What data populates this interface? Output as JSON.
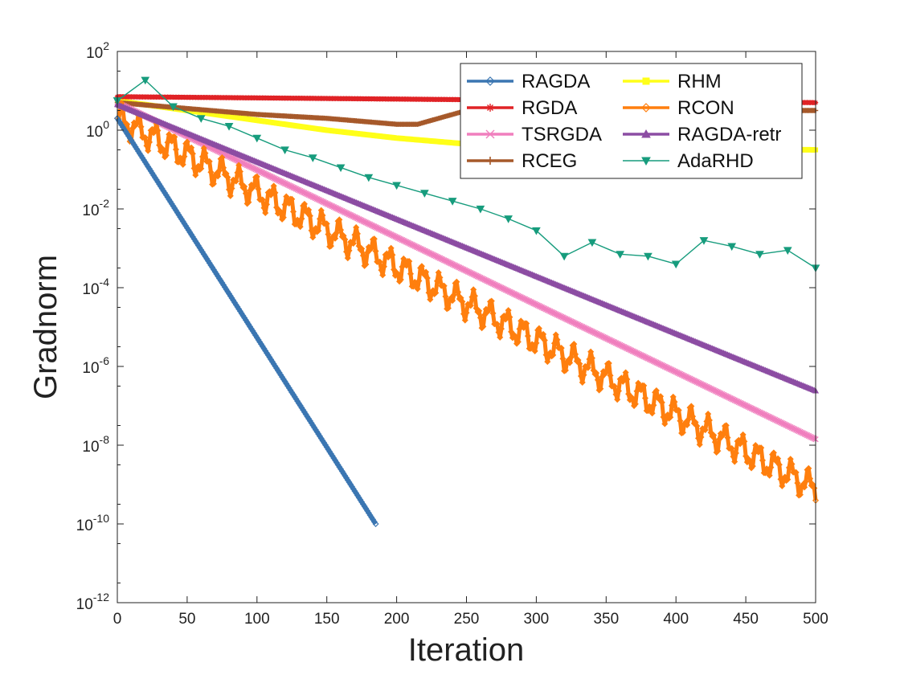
{
  "chart_data": {
    "type": "line",
    "title": "",
    "xlabel": "Iteration",
    "ylabel": "Gradnorm",
    "yscale": "log",
    "xlim": [
      0,
      500
    ],
    "ylim_exp": [
      -12,
      2
    ],
    "xticks": [
      "0",
      "50",
      "100",
      "150",
      "200",
      "250",
      "300",
      "350",
      "400",
      "450",
      "500"
    ],
    "yticks_exp": [
      "-12",
      "-10",
      "-8",
      "-6",
      "-4",
      "-2",
      "0",
      "2"
    ],
    "grid": false,
    "legend_position": "top-right",
    "series": [
      {
        "name": "RAGDA",
        "color": "#3b76b2",
        "marker": "diamond",
        "x": [
          0,
          185
        ],
        "log10_y": [
          0.3,
          -10.0
        ]
      },
      {
        "name": "RGDA",
        "color": "#e02326",
        "marker": "star",
        "x": [
          0,
          500
        ],
        "log10_y": [
          0.85,
          0.7
        ]
      },
      {
        "name": "TSRGDA",
        "color": "#f07fbe",
        "marker": "x",
        "x": [
          0,
          500
        ],
        "log10_y": [
          0.7,
          -7.85
        ]
      },
      {
        "name": "RCEG",
        "color": "#a6592a",
        "marker": "plus",
        "x": [
          0,
          50,
          100,
          150,
          200,
          215,
          230,
          250,
          300,
          400,
          500
        ],
        "log10_y": [
          0.7,
          0.55,
          0.4,
          0.3,
          0.15,
          0.15,
          0.3,
          0.5,
          0.55,
          0.5,
          0.5
        ]
      },
      {
        "name": "RHM",
        "color": "#ffff19",
        "marker": "square",
        "x": [
          0,
          50,
          100,
          150,
          200,
          250,
          300,
          350,
          400,
          450,
          500
        ],
        "log10_y": [
          0.75,
          0.5,
          0.25,
          0.0,
          -0.2,
          -0.35,
          -0.42,
          -0.45,
          -0.47,
          -0.48,
          -0.5
        ]
      },
      {
        "name": "RCON",
        "color": "#ff7f0e",
        "marker": "diamond",
        "x": [
          0,
          500
        ],
        "log10_y": [
          0.3,
          -9.1
        ]
      },
      {
        "name": "RAGDA-retr",
        "color": "#8c4da3",
        "marker": "triangle-up",
        "x": [
          0,
          500
        ],
        "log10_y": [
          0.65,
          -6.62
        ]
      },
      {
        "name": "AdaRHD",
        "color": "#179c7d",
        "marker": "triangle-down",
        "x": [
          0,
          20,
          40,
          60,
          80,
          100,
          120,
          140,
          160,
          180,
          200,
          220,
          240,
          260,
          280,
          300,
          320,
          340,
          360,
          380,
          400,
          420,
          440,
          460,
          480,
          500
        ],
        "log10_y": [
          0.75,
          1.27,
          0.6,
          0.3,
          0.1,
          -0.2,
          -0.5,
          -0.7,
          -0.95,
          -1.2,
          -1.4,
          -1.6,
          -1.8,
          -2.0,
          -2.25,
          -2.55,
          -3.2,
          -2.85,
          -3.15,
          -3.2,
          -3.4,
          -2.8,
          -2.95,
          -3.15,
          -3.05,
          -3.5
        ]
      }
    ]
  }
}
